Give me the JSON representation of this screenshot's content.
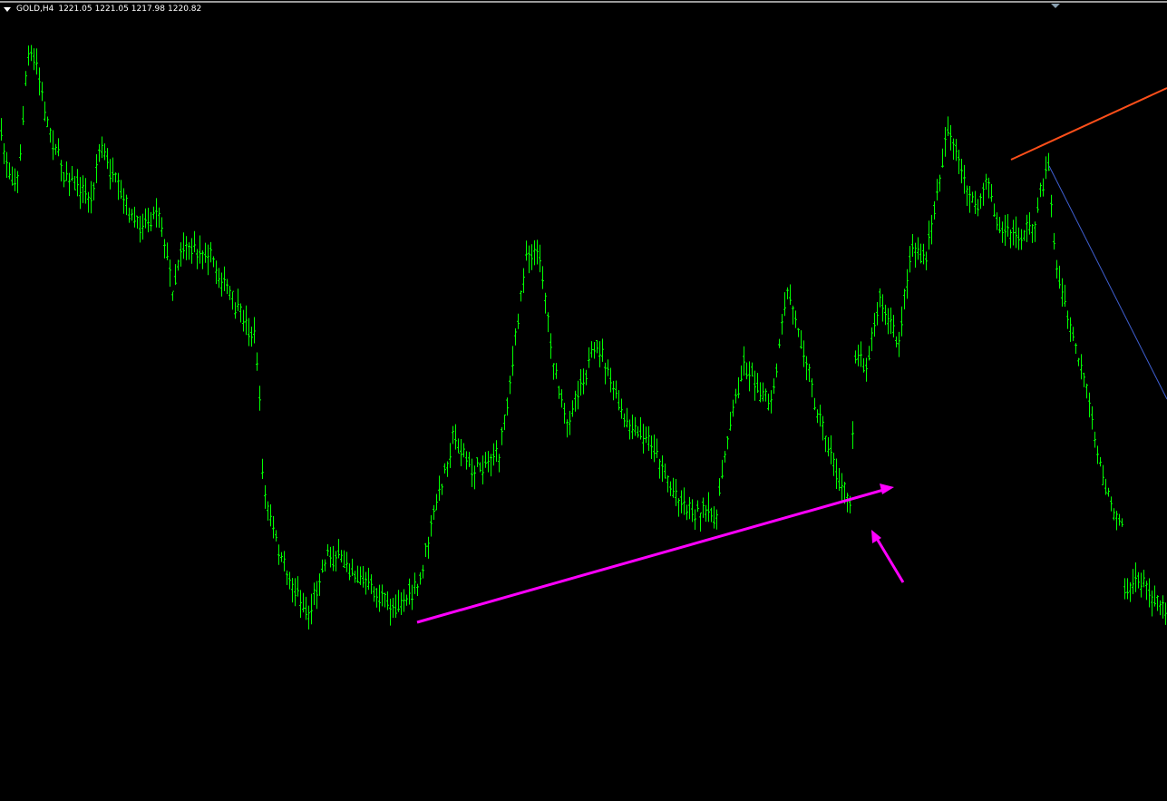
{
  "chart": {
    "symbol_timeframe": "GOLD,H4",
    "open": "1221.05",
    "high": "1221.05",
    "low": "1217.98",
    "close": "1220.82"
  },
  "colors": {
    "background": "#000000",
    "bars": "#00ff00",
    "trendline_support": "#ff00ff",
    "arrow": "#ff00ff",
    "trendline_resistance": "#ff4f1a",
    "trendline_thin": "#3f5fd0"
  },
  "icons": [
    "menu-triangle-icon",
    "chart-shift-marker-icon",
    "arrow-icon"
  ]
}
